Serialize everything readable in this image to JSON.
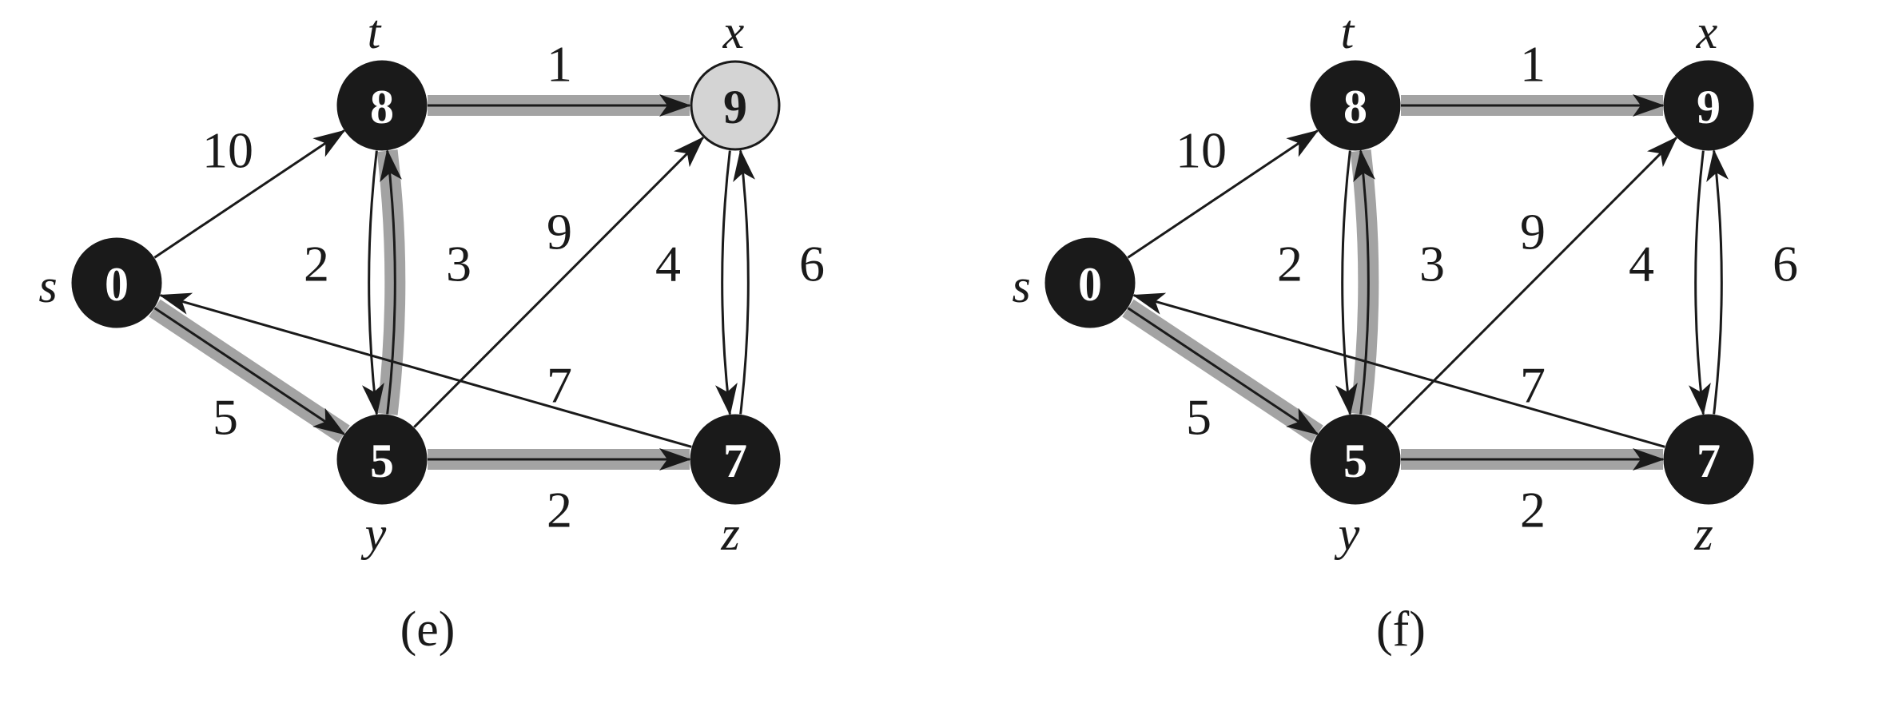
{
  "colors": {
    "node_fill": "#1a1a1a",
    "node_text": "#ffffff",
    "gray_node_fill": "#d4d4d4",
    "gray_node_text": "#1a1a1a",
    "shade": "#a3a3a3",
    "edge": "#1a1a1a"
  },
  "panels": [
    {
      "caption": "(e)",
      "vertices": [
        {
          "id": "s",
          "label": "s",
          "dist": "0",
          "state": "black"
        },
        {
          "id": "t",
          "label": "t",
          "dist": "8",
          "state": "black"
        },
        {
          "id": "x",
          "label": "x",
          "dist": "9",
          "state": "gray"
        },
        {
          "id": "y",
          "label": "y",
          "dist": "5",
          "state": "black"
        },
        {
          "id": "z",
          "label": "z",
          "dist": "7",
          "state": "black"
        }
      ],
      "edges": [
        {
          "from": "s",
          "to": "t",
          "weight": "10",
          "shaded": false
        },
        {
          "from": "s",
          "to": "y",
          "weight": "5",
          "shaded": true
        },
        {
          "from": "t",
          "to": "x",
          "weight": "1",
          "shaded": true
        },
        {
          "from": "t",
          "to": "y",
          "weight": "2",
          "shaded": false
        },
        {
          "from": "y",
          "to": "t",
          "weight": "3",
          "shaded": true
        },
        {
          "from": "y",
          "to": "x",
          "weight": "9",
          "shaded": false
        },
        {
          "from": "y",
          "to": "z",
          "weight": "2",
          "shaded": true
        },
        {
          "from": "x",
          "to": "z",
          "weight": "4",
          "shaded": false
        },
        {
          "from": "z",
          "to": "x",
          "weight": "6",
          "shaded": false
        },
        {
          "from": "z",
          "to": "s",
          "weight": "7",
          "shaded": false
        }
      ]
    },
    {
      "caption": "(f)",
      "vertices": [
        {
          "id": "s",
          "label": "s",
          "dist": "0",
          "state": "black"
        },
        {
          "id": "t",
          "label": "t",
          "dist": "8",
          "state": "black"
        },
        {
          "id": "x",
          "label": "x",
          "dist": "9",
          "state": "black"
        },
        {
          "id": "y",
          "label": "y",
          "dist": "5",
          "state": "black"
        },
        {
          "id": "z",
          "label": "z",
          "dist": "7",
          "state": "black"
        }
      ],
      "edges": [
        {
          "from": "s",
          "to": "t",
          "weight": "10",
          "shaded": false
        },
        {
          "from": "s",
          "to": "y",
          "weight": "5",
          "shaded": true
        },
        {
          "from": "t",
          "to": "x",
          "weight": "1",
          "shaded": true
        },
        {
          "from": "t",
          "to": "y",
          "weight": "2",
          "shaded": false
        },
        {
          "from": "y",
          "to": "t",
          "weight": "3",
          "shaded": true
        },
        {
          "from": "y",
          "to": "x",
          "weight": "9",
          "shaded": false
        },
        {
          "from": "y",
          "to": "z",
          "weight": "2",
          "shaded": true
        },
        {
          "from": "x",
          "to": "z",
          "weight": "4",
          "shaded": false
        },
        {
          "from": "z",
          "to": "x",
          "weight": "6",
          "shaded": false
        },
        {
          "from": "z",
          "to": "s",
          "weight": "7",
          "shaded": false
        }
      ]
    }
  ]
}
